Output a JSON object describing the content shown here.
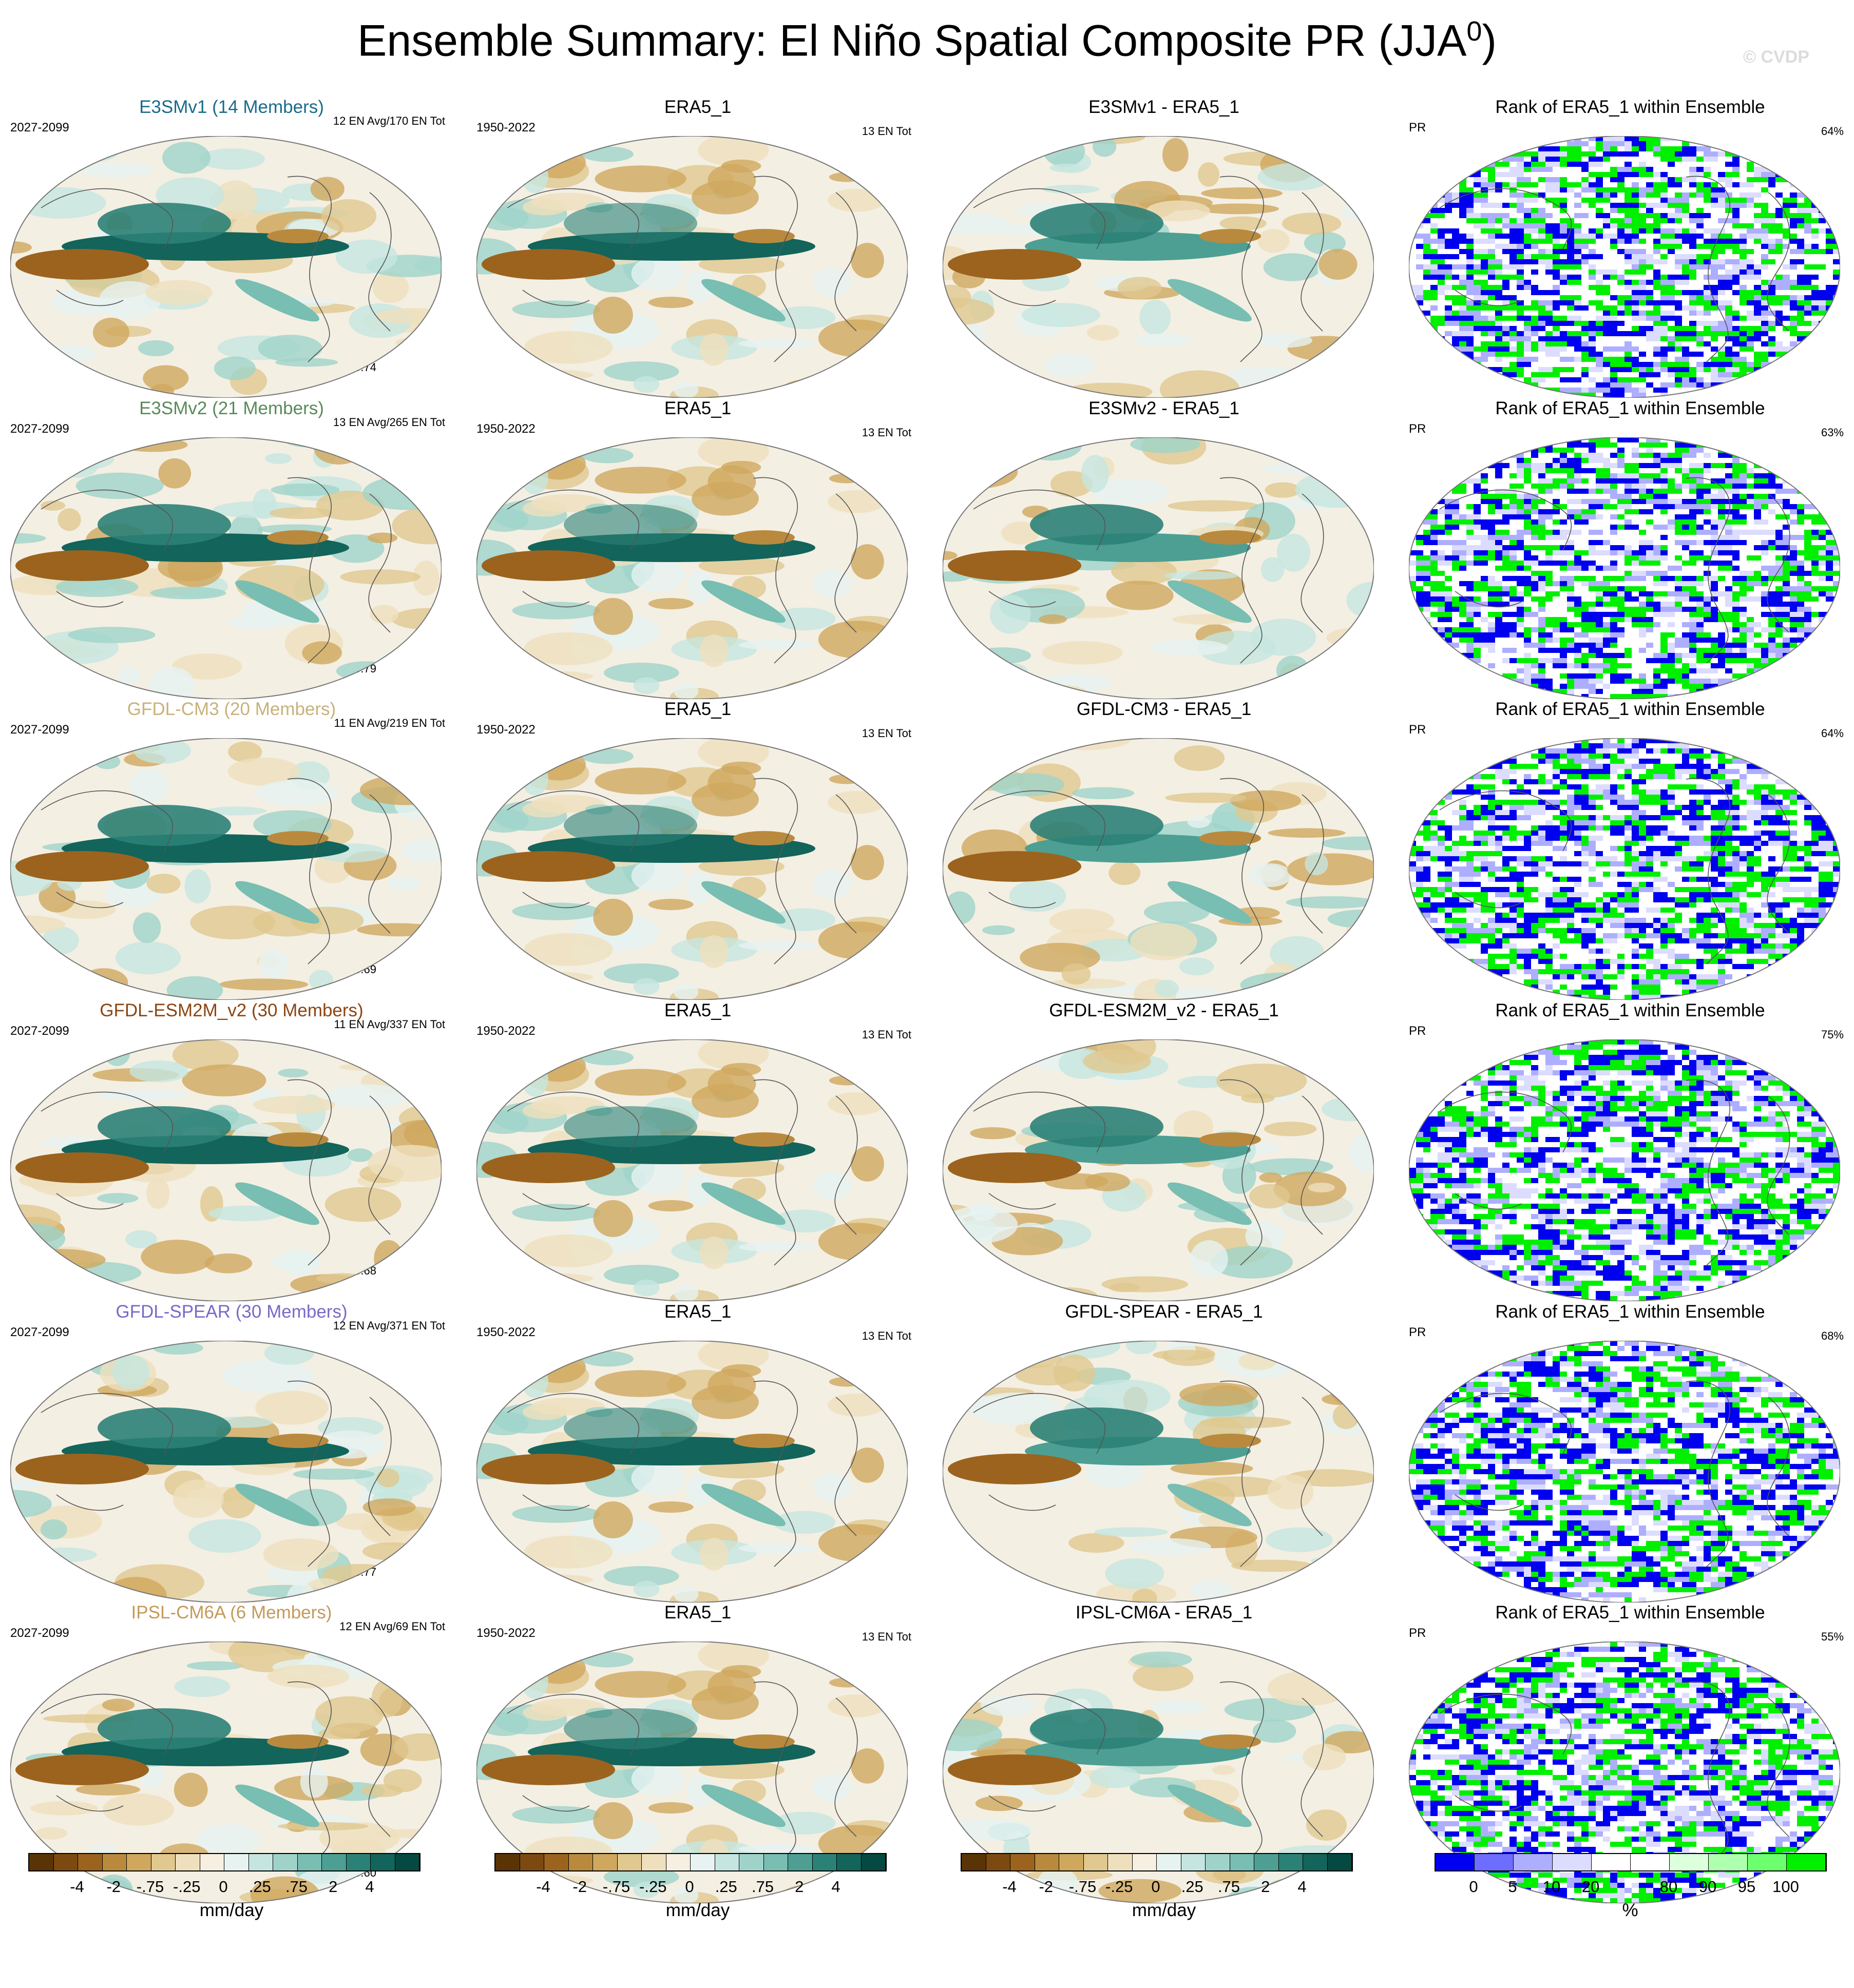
{
  "title": "Ensemble Summary: El Niño Spatial Composite PR (JJA",
  "title_sup": "0",
  "title_end": ")",
  "watermark": "© CVDP",
  "rank_title": "Rank of ERA5_1 within Ensemble",
  "obs_title": "ERA5_1",
  "obs_period": "1950-2022",
  "obs_count": "13 EN Tot",
  "rank_var": "PR",
  "rows": [
    {
      "model": "E3SMv1 (14 Members)",
      "color": "#1a6b8a",
      "period": "2027-2099",
      "en": "12 EN Avg/170 EN Tot",
      "r": "r=0.74",
      "diff": "E3SMv1 - ERA5_1",
      "pct": "64%"
    },
    {
      "model": "E3SMv2 (21 Members)",
      "color": "#5a8a5a",
      "period": "2027-2099",
      "en": "13 EN Avg/265 EN Tot",
      "r": "r=0.79",
      "diff": "E3SMv2 - ERA5_1",
      "pct": "63%"
    },
    {
      "model": "GFDL-CM3 (20 Members)",
      "color": "#c8b27a",
      "period": "2027-2099",
      "en": "11 EN Avg/219 EN Tot",
      "r": "r=0.69",
      "diff": "GFDL-CM3 - ERA5_1",
      "pct": "64%"
    },
    {
      "model": "GFDL-ESM2M_v2 (30 Members)",
      "color": "#8b4513",
      "period": "2027-2099",
      "en": "11 EN Avg/337 EN Tot",
      "r": "r=0.68",
      "diff": "GFDL-ESM2M_v2 - ERA5_1",
      "pct": "75%"
    },
    {
      "model": "GFDL-SPEAR (30 Members)",
      "color": "#7b68c8",
      "period": "2027-2099",
      "en": "12 EN Avg/371 EN Tot",
      "r": "r=0.77",
      "diff": "GFDL-SPEAR - ERA5_1",
      "pct": "68%"
    },
    {
      "model": "IPSL-CM6A (6 Members)",
      "color": "#c49a5a",
      "period": "2027-2099",
      "en": "12 EN Avg/69 EN Tot",
      "r": "r=0.60",
      "diff": "IPSL-CM6A - ERA5_1",
      "pct": "55%"
    }
  ],
  "pr_colorbar": {
    "colors": [
      "#5a3405",
      "#7c4a10",
      "#9c631e",
      "#b98a3e",
      "#cfa85e",
      "#e0c88f",
      "#efe0bd",
      "#f7efe1",
      "#e6f3f1",
      "#c5e6e0",
      "#9fd3c9",
      "#78beb2",
      "#4d9f93",
      "#2c8177",
      "#13645b",
      "#054a42"
    ],
    "ticks": [
      "-4",
      "-2",
      "-.75",
      "-.25",
      "0",
      ".25",
      ".75",
      "2",
      "4"
    ],
    "unit": "mm/day"
  },
  "rank_colorbar": {
    "colors": [
      "#0000f0",
      "#6d6dff",
      "#aeaeff",
      "#dcdcff",
      "#ffffff",
      "#ffffff",
      "#dcffdc",
      "#aeffae",
      "#6dff6d",
      "#00f000"
    ],
    "ticks": [
      "0",
      "5",
      "10",
      "20",
      "80",
      "90",
      "95",
      "100"
    ],
    "unit": "%"
  }
}
